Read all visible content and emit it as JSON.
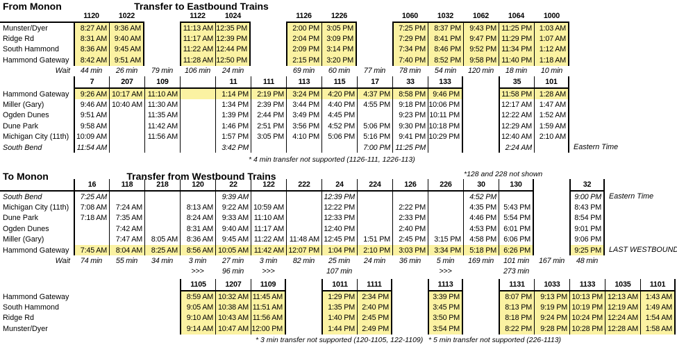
{
  "highlight_color": "#FBF2A2",
  "border_color": "#000000",
  "top": {
    "section_label": "From Monon",
    "title": "Transfer to Eastbound Trains",
    "footnote": "* 4 min transfer not supported (1126-111, 1226-113)",
    "band1": {
      "trains": [
        "1120",
        "1022",
        "",
        "1122",
        "1024",
        "",
        "1126",
        "1226",
        "",
        "1060",
        "1032",
        "1062",
        "1064",
        "1000",
        "",
        "",
        ""
      ],
      "highlight": "all",
      "rows": [
        {
          "station": "Munster/Dyer",
          "cells": [
            "8:27 AM",
            "9:36 AM",
            "",
            "11:13 AM",
            "12:35 PM",
            "",
            "2:00 PM",
            "3:05 PM",
            "",
            "7:25 PM",
            "8:37 PM",
            "9:43 PM",
            "11:25 PM",
            "1:03 AM",
            "",
            "",
            ""
          ]
        },
        {
          "station": "Ridge Rd",
          "cells": [
            "8:31 AM",
            "9:40 AM",
            "",
            "11:17 AM",
            "12:39 PM",
            "",
            "2:04 PM",
            "3:09 PM",
            "",
            "7:29 PM",
            "8:41 PM",
            "9:47 PM",
            "11:29 PM",
            "1:07 AM",
            "",
            "",
            ""
          ]
        },
        {
          "station": "South Hammond",
          "cells": [
            "8:36 AM",
            "9:45 AM",
            "",
            "11:22 AM",
            "12:44 PM",
            "",
            "2:09 PM",
            "3:14 PM",
            "",
            "7:34 PM",
            "8:46 PM",
            "9:52 PM",
            "11:34 PM",
            "1:12 AM",
            "",
            "",
            ""
          ]
        },
        {
          "station": "Hammond Gateway",
          "cells": [
            "8:42 AM",
            "9:51 AM",
            "",
            "11:28 AM",
            "12:50 PM",
            "",
            "2:15 PM",
            "3:20 PM",
            "",
            "7:40 PM",
            "8:52 PM",
            "9:58 PM",
            "11:40 PM",
            "1:18 AM",
            "",
            "",
            ""
          ]
        }
      ],
      "wait": {
        "label": "Wait",
        "values": [
          "44 min",
          "26 min",
          "79 min",
          "106 min",
          "24 min",
          "",
          "69 min",
          "60 min",
          "77 min",
          "78 min",
          "54 min",
          "120 min",
          "18 min",
          "10 min",
          "",
          "",
          ""
        ]
      }
    },
    "band2": {
      "trains": [
        "7",
        "207",
        "109",
        "",
        "11",
        "111",
        "113",
        "115",
        "17",
        "33",
        "133",
        "",
        "35",
        "101",
        "",
        "",
        ""
      ],
      "highlight": [
        0
      ],
      "rows": [
        {
          "station": "Hammond Gateway",
          "cells": [
            "9:26 AM",
            "10:17 AM",
            "11:10 AM",
            "",
            "1:14 PM",
            "2:19 PM",
            "3:24 PM",
            "4:20 PM",
            "4:37 PM",
            "8:58 PM",
            "9:46 PM",
            "",
            "11:58 PM",
            "1:28 AM",
            "",
            "",
            ""
          ]
        },
        {
          "station": "Miller (Gary)",
          "cells": [
            "9:46 AM",
            "10:40 AM",
            "11:30 AM",
            "",
            "1:34 PM",
            "2:39 PM",
            "3:44 PM",
            "4:40 PM",
            "4:55 PM",
            "9:18 PM",
            "10:06 PM",
            "",
            "12:17 AM",
            "1:47 AM",
            "",
            "",
            ""
          ]
        },
        {
          "station": "Ogden Dunes",
          "cells": [
            "9:51 AM",
            "",
            "11:35 AM",
            "",
            "1:39 PM",
            "2:44 PM",
            "3:49 PM",
            "4:45 PM",
            "",
            "9:23 PM",
            "10:11 PM",
            "",
            "12:22 AM",
            "1:52 AM",
            "",
            "",
            ""
          ]
        },
        {
          "station": "Dune Park",
          "cells": [
            "9:58 AM",
            "",
            "11:42 AM",
            "",
            "1:46 PM",
            "2:51 PM",
            "3:56 PM",
            "4:52 PM",
            "5:06 PM",
            "9:30 PM",
            "10:18 PM",
            "",
            "12:29 AM",
            "1:59 AM",
            "",
            "",
            ""
          ]
        },
        {
          "station": "Michigan City (11th)",
          "cells": [
            "10:09 AM",
            "",
            "11:56 AM",
            "",
            "1:57 PM",
            "3:05 PM",
            "4:10 PM",
            "5:06 PM",
            "5:16 PM",
            "9:41 PM",
            "10:29 PM",
            "",
            "12:40 AM",
            "2:10 AM",
            "",
            "",
            ""
          ]
        },
        {
          "station": "South Bend",
          "italic": true,
          "note": "Eastern Time",
          "cells": [
            "11:54 AM",
            "",
            "",
            "",
            "3:42 PM",
            "",
            "",
            "",
            "7:00 PM",
            "11:25 PM",
            "",
            "",
            "2:24 AM",
            "",
            "",
            "",
            ""
          ]
        }
      ]
    }
  },
  "bottom": {
    "section_label": "To Monon",
    "title": "Transfer from Westbound Trains",
    "side_note": "*128 and 228 not shown",
    "footnote_left": "* 3 min transfer not supported (120-1105, 122-1109)",
    "footnote_right": "* 5 min transfer not supported (226-1113)",
    "band3": {
      "trains": [
        "16",
        "118",
        "218",
        "120",
        "22",
        "122",
        "222",
        "24",
        "224",
        "126",
        "226",
        "30",
        "130",
        "",
        "32",
        "",
        ""
      ],
      "highlight": [
        5
      ],
      "rows": [
        {
          "station": "South Bend",
          "italic": true,
          "note": "Eastern Time",
          "cells": [
            "7:25 AM",
            "",
            "",
            "",
            "9:39 AM",
            "",
            "",
            "12:39 PM",
            "",
            "",
            "",
            "4:52 PM",
            "",
            "",
            "9:00 PM",
            "",
            ""
          ]
        },
        {
          "station": "Michigan City (11th)",
          "cells": [
            "7:08 AM",
            "7:24 AM",
            "",
            "8:13 AM",
            "9:22 AM",
            "10:59 AM",
            "",
            "12:22 PM",
            "",
            "2:22 PM",
            "",
            "4:35 PM",
            "5:43 PM",
            "",
            "8:43 PM",
            "",
            ""
          ]
        },
        {
          "station": "Dune Park",
          "cells": [
            "7:18 AM",
            "7:35 AM",
            "",
            "8:24 AM",
            "9:33 AM",
            "11:10 AM",
            "",
            "12:33 PM",
            "",
            "2:33 PM",
            "",
            "4:46 PM",
            "5:54 PM",
            "",
            "8:54 PM",
            "",
            ""
          ]
        },
        {
          "station": "Ogden Dunes",
          "cells": [
            "",
            "7:42 AM",
            "",
            "8:31 AM",
            "9:40 AM",
            "11:17 AM",
            "",
            "12:40 PM",
            "",
            "2:40 PM",
            "",
            "4:53 PM",
            "6:01 PM",
            "",
            "9:01 PM",
            "",
            ""
          ]
        },
        {
          "station": "Miller (Gary)",
          "cells": [
            "",
            "7:47 AM",
            "8:05 AM",
            "8:36 AM",
            "9:45 AM",
            "11:22 AM",
            "11:48 AM",
            "12:45 PM",
            "1:51 PM",
            "2:45 PM",
            "3:15 PM",
            "4:58 PM",
            "6:06 PM",
            "",
            "9:06 PM",
            "",
            ""
          ]
        },
        {
          "station": "Hammond Gateway",
          "note": "LAST WESTBOUND",
          "cells": [
            "7:45 AM",
            "8:04 AM",
            "8:25 AM",
            "8:56 AM",
            "10:05 AM",
            "11:42 AM",
            "12:07 PM",
            "1:04 PM",
            "2:10 PM",
            "3:03 PM",
            "3:34 PM",
            "5:18 PM",
            "6:26 PM",
            "",
            "9:25 PM",
            "",
            ""
          ]
        }
      ],
      "wait": {
        "label": "Wait",
        "values": [
          "74 min",
          "55 min",
          "34 min",
          "3 min",
          "27 min",
          "3 min",
          "82 min",
          "25 min",
          "24 min",
          "36 min",
          "5 min",
          "169 min",
          "101 min",
          "167 min",
          "48 min",
          "",
          ""
        ]
      },
      "wait2": {
        "values": [
          "",
          "",
          "",
          ">>>",
          "96 min",
          ">>>",
          "",
          "107 min",
          "",
          "",
          ">>>",
          "",
          "273 min",
          "",
          "",
          "",
          ""
        ]
      }
    },
    "band4": {
      "trains": [
        "",
        "",
        "",
        "1105",
        "1207",
        "1109",
        "",
        "1011",
        "1111",
        "",
        "1113",
        "",
        "1131",
        "1033",
        "1133",
        "1035",
        "1101"
      ],
      "highlight": "all",
      "rows": [
        {
          "station": "Hammond Gateway",
          "cells": [
            "",
            "",
            "",
            "8:59 AM",
            "10:32 AM",
            "11:45 AM",
            "",
            "1:29 PM",
            "2:34 PM",
            "",
            "3:39 PM",
            "",
            "8:07 PM",
            "9:13 PM",
            "10:13 PM",
            "12:13 AM",
            "1:43 AM"
          ]
        },
        {
          "station": "South Hammond",
          "cells": [
            "",
            "",
            "",
            "9:05 AM",
            "10:38 AM",
            "11:51 AM",
            "",
            "1:35 PM",
            "2:40 PM",
            "",
            "3:45 PM",
            "",
            "8:13 PM",
            "9:19 PM",
            "10:19 PM",
            "12:19 AM",
            "1:49 AM"
          ]
        },
        {
          "station": "Ridge Rd",
          "cells": [
            "",
            "",
            "",
            "9:10 AM",
            "10:43 AM",
            "11:56 AM",
            "",
            "1:40 PM",
            "2:45 PM",
            "",
            "3:50 PM",
            "",
            "8:18 PM",
            "9:24 PM",
            "10:24 PM",
            "12:24 AM",
            "1:54 AM"
          ]
        },
        {
          "station": "Munster/Dyer",
          "cells": [
            "",
            "",
            "",
            "9:14 AM",
            "10:47 AM",
            "12:00 PM",
            "",
            "1:44 PM",
            "2:49 PM",
            "",
            "3:54 PM",
            "",
            "8:22 PM",
            "9:28 PM",
            "10:28 PM",
            "12:28 AM",
            "1:58 AM"
          ]
        }
      ]
    }
  }
}
